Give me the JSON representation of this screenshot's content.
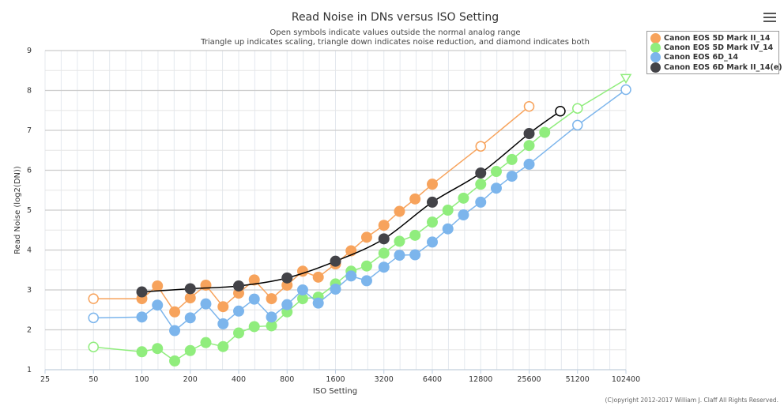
{
  "chart_data": {
    "type": "line",
    "title": "Read Noise in DNs versus ISO Setting",
    "subtitle_lines": [
      "Open symbols indicate values outside the normal analog range",
      "Triangle up indicates scaling, triangle down indicates noise reduction, and diamond indicates both"
    ],
    "xlabel": "ISO Setting",
    "ylabel": "Read Noise (log2(DN))",
    "x_scale": "log2",
    "xlim": [
      25,
      102400
    ],
    "ylim": [
      1,
      9
    ],
    "x_ticks": [
      "25",
      "50",
      "100",
      "200",
      "400",
      "800",
      "1600",
      "3200",
      "6400",
      "12800",
      "25600",
      "51200",
      "102400"
    ],
    "y_ticks": [
      "1",
      "2",
      "3",
      "4",
      "5",
      "6",
      "7",
      "8",
      "9"
    ],
    "grid": true,
    "legend_position": "top-right",
    "credit": "(C)opyright 2012-2017 William J. Claff All Rights Reserved.",
    "series": [
      {
        "name": "Canon EOS 5D Mark II_14",
        "color": "#f7a35c",
        "smooth": false,
        "points": [
          {
            "iso": 50,
            "value": 2.78,
            "open": true
          },
          {
            "iso": 100,
            "value": 2.78
          },
          {
            "iso": 125,
            "value": 3.1
          },
          {
            "iso": 160,
            "value": 2.45
          },
          {
            "iso": 200,
            "value": 2.8
          },
          {
            "iso": 250,
            "value": 3.12
          },
          {
            "iso": 320,
            "value": 2.58
          },
          {
            "iso": 400,
            "value": 2.92
          },
          {
            "iso": 500,
            "value": 3.25
          },
          {
            "iso": 640,
            "value": 2.78
          },
          {
            "iso": 800,
            "value": 3.12
          },
          {
            "iso": 1000,
            "value": 3.47
          },
          {
            "iso": 1250,
            "value": 3.32
          },
          {
            "iso": 1600,
            "value": 3.65
          },
          {
            "iso": 2000,
            "value": 3.98
          },
          {
            "iso": 2500,
            "value": 4.32
          },
          {
            "iso": 3200,
            "value": 4.62
          },
          {
            "iso": 4000,
            "value": 4.97
          },
          {
            "iso": 5000,
            "value": 5.28
          },
          {
            "iso": 6400,
            "value": 5.65
          },
          {
            "iso": 12800,
            "value": 6.6,
            "open": true
          },
          {
            "iso": 25600,
            "value": 7.6,
            "open": true
          }
        ]
      },
      {
        "name": "Canon EOS 5D Mark IV_14",
        "color": "#90ed7d",
        "smooth": false,
        "points": [
          {
            "iso": 50,
            "value": 1.57,
            "open": true
          },
          {
            "iso": 100,
            "value": 1.45
          },
          {
            "iso": 125,
            "value": 1.53
          },
          {
            "iso": 160,
            "value": 1.22
          },
          {
            "iso": 200,
            "value": 1.48
          },
          {
            "iso": 250,
            "value": 1.68
          },
          {
            "iso": 320,
            "value": 1.58
          },
          {
            "iso": 400,
            "value": 1.92
          },
          {
            "iso": 500,
            "value": 2.08
          },
          {
            "iso": 640,
            "value": 2.1
          },
          {
            "iso": 800,
            "value": 2.45
          },
          {
            "iso": 1000,
            "value": 2.78
          },
          {
            "iso": 1250,
            "value": 2.82
          },
          {
            "iso": 1600,
            "value": 3.15
          },
          {
            "iso": 2000,
            "value": 3.47
          },
          {
            "iso": 2500,
            "value": 3.6
          },
          {
            "iso": 3200,
            "value": 3.92
          },
          {
            "iso": 4000,
            "value": 4.22
          },
          {
            "iso": 5000,
            "value": 4.37
          },
          {
            "iso": 6400,
            "value": 4.7
          },
          {
            "iso": 8000,
            "value": 5.0
          },
          {
            "iso": 10000,
            "value": 5.3
          },
          {
            "iso": 12800,
            "value": 5.65
          },
          {
            "iso": 16000,
            "value": 5.97
          },
          {
            "iso": 20000,
            "value": 6.27
          },
          {
            "iso": 25600,
            "value": 6.62
          },
          {
            "iso": 32000,
            "value": 6.95
          },
          {
            "iso": 51200,
            "value": 7.55,
            "open": true
          },
          {
            "iso": 102400,
            "value": 8.28,
            "open": true,
            "symbol": "triangle-down"
          }
        ]
      },
      {
        "name": "Canon EOS 6D_14",
        "color": "#7cb5ec",
        "smooth": false,
        "points": [
          {
            "iso": 50,
            "value": 2.3,
            "open": true
          },
          {
            "iso": 100,
            "value": 2.32
          },
          {
            "iso": 125,
            "value": 2.62
          },
          {
            "iso": 160,
            "value": 1.98
          },
          {
            "iso": 200,
            "value": 2.3
          },
          {
            "iso": 250,
            "value": 2.65
          },
          {
            "iso": 320,
            "value": 2.15
          },
          {
            "iso": 400,
            "value": 2.47
          },
          {
            "iso": 500,
            "value": 2.77
          },
          {
            "iso": 640,
            "value": 2.32
          },
          {
            "iso": 800,
            "value": 2.63
          },
          {
            "iso": 1000,
            "value": 3.0
          },
          {
            "iso": 1250,
            "value": 2.67
          },
          {
            "iso": 1600,
            "value": 3.02
          },
          {
            "iso": 2000,
            "value": 3.35
          },
          {
            "iso": 2500,
            "value": 3.23
          },
          {
            "iso": 3200,
            "value": 3.57
          },
          {
            "iso": 4000,
            "value": 3.87
          },
          {
            "iso": 5000,
            "value": 3.88
          },
          {
            "iso": 6400,
            "value": 4.2
          },
          {
            "iso": 8000,
            "value": 4.53
          },
          {
            "iso": 10000,
            "value": 4.88
          },
          {
            "iso": 12800,
            "value": 5.2
          },
          {
            "iso": 16000,
            "value": 5.55
          },
          {
            "iso": 20000,
            "value": 5.85
          },
          {
            "iso": 25600,
            "value": 6.15
          },
          {
            "iso": 51200,
            "value": 7.13,
            "open": true
          },
          {
            "iso": 102400,
            "value": 8.02,
            "open": true
          }
        ]
      },
      {
        "name": "Canon EOS 6D Mark II_14(e)",
        "color": "#434348",
        "line_color": "#000000",
        "smooth": true,
        "points": [
          {
            "iso": 100,
            "value": 2.95
          },
          {
            "iso": 200,
            "value": 3.03
          },
          {
            "iso": 400,
            "value": 3.1
          },
          {
            "iso": 800,
            "value": 3.3
          },
          {
            "iso": 1600,
            "value": 3.72
          },
          {
            "iso": 3200,
            "value": 4.28
          },
          {
            "iso": 6400,
            "value": 5.2
          },
          {
            "iso": 12800,
            "value": 5.93
          },
          {
            "iso": 25600,
            "value": 6.92
          },
          {
            "iso": 40000,
            "value": 7.48,
            "open": true
          }
        ]
      }
    ]
  },
  "menu": {
    "icon": "hamburger-menu-icon"
  }
}
